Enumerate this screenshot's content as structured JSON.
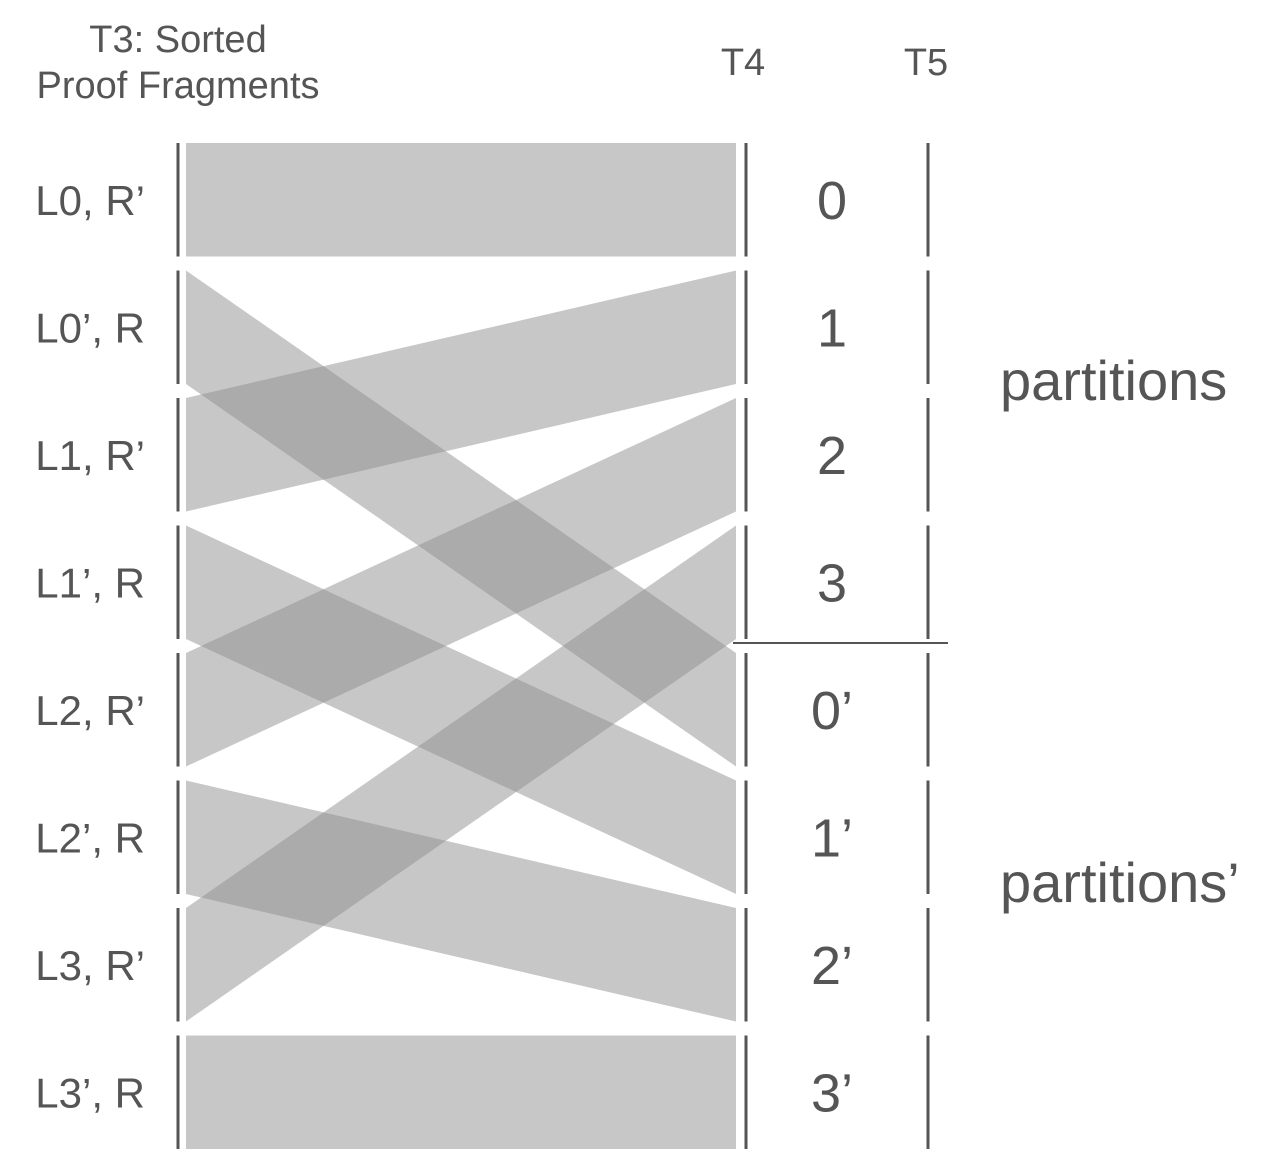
{
  "header": {
    "t3_line1": "T3: Sorted",
    "t3_line2": "Proof Fragments",
    "t4": "T4",
    "t5": "T5"
  },
  "rows": [
    "L0, R’",
    "L0’, R",
    "L1, R’",
    "L1’, R",
    "L2, R’",
    "L2’, R",
    "L3, R’",
    "L3’, R"
  ],
  "partitions": [
    "0",
    "1",
    "2",
    "3",
    "0’",
    "1’",
    "2’",
    "3’"
  ],
  "side_labels": {
    "top": "partitions",
    "bottom": "partitions’"
  },
  "mapping": [
    0,
    4,
    1,
    5,
    2,
    6,
    3,
    7
  ],
  "colors": {
    "band": "#8f8f8f",
    "text": "#555555",
    "line": "#555555"
  }
}
